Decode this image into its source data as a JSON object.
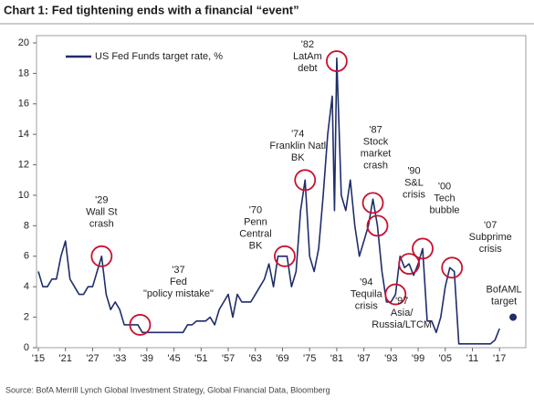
{
  "chart_data": {
    "type": "line",
    "title": "Chart 1: Fed tightening ends with a financial “event”",
    "source": "Source: BofA Merrill Lynch Global Investment Strategy, Global Financial Data, Bloomberg",
    "xlim": [
      1915,
      2022
    ],
    "ylim": [
      0,
      20
    ],
    "yticks": [
      0,
      2,
      4,
      6,
      8,
      10,
      12,
      14,
      16,
      18,
      20
    ],
    "xticks": [
      {
        "value": 1915,
        "label": "'15"
      },
      {
        "value": 1921,
        "label": "'21"
      },
      {
        "value": 1927,
        "label": "'27"
      },
      {
        "value": 1933,
        "label": "'33"
      },
      {
        "value": 1939,
        "label": "'39"
      },
      {
        "value": 1945,
        "label": "'45"
      },
      {
        "value": 1951,
        "label": "'51"
      },
      {
        "value": 1957,
        "label": "'57"
      },
      {
        "value": 1963,
        "label": "'63"
      },
      {
        "value": 1969,
        "label": "'69"
      },
      {
        "value": 1975,
        "label": "'75"
      },
      {
        "value": 1981,
        "label": "'81"
      },
      {
        "value": 1987,
        "label": "'87"
      },
      {
        "value": 1993,
        "label": "'93"
      },
      {
        "value": 1999,
        "label": "'99"
      },
      {
        "value": 2005,
        "label": "'05"
      },
      {
        "value": 2011,
        "label": "'11"
      },
      {
        "value": 2017,
        "label": "'17"
      }
    ],
    "legend": "upper left",
    "x": [
      1915,
      1916,
      1917,
      1918,
      1919,
      1920,
      1921,
      1922,
      1923,
      1924,
      1925,
      1926,
      1927,
      1928,
      1929,
      1930,
      1931,
      1932,
      1933,
      1934,
      1935,
      1936,
      1937,
      1938,
      1939,
      1940,
      1941,
      1942,
      1943,
      1944,
      1945,
      1946,
      1947,
      1948,
      1949,
      1950,
      1951,
      1952,
      1953,
      1954,
      1955,
      1956,
      1957,
      1958,
      1959,
      1960,
      1961,
      1962,
      1963,
      1964,
      1965,
      1966,
      1967,
      1968,
      1969,
      1970,
      1971,
      1972,
      1973,
      1974,
      1975,
      1976,
      1977,
      1978,
      1979,
      1980,
      1980.5,
      1981,
      1982,
      1983,
      1984,
      1985,
      1986,
      1987,
      1988,
      1989,
      1990,
      1991,
      1992,
      1993,
      1994,
      1995,
      1996,
      1997,
      1998,
      1999,
      2000,
      2001,
      2002,
      2003,
      2004,
      2005,
      2006,
      2007,
      2008,
      2009,
      2010,
      2011,
      2012,
      2013,
      2014,
      2015,
      2016,
      2017
    ],
    "series": [
      {
        "name": "US Fed Funds target rate, %",
        "color": "#1f2d6b",
        "values": [
          5,
          4,
          4,
          4.5,
          4.5,
          6,
          7,
          4.5,
          4,
          3.5,
          3.5,
          4,
          4,
          5,
          6,
          3.5,
          2.5,
          3,
          2.5,
          1.5,
          1.5,
          1.5,
          1.5,
          1,
          1,
          1,
          1,
          1,
          1,
          1,
          1,
          1,
          1,
          1.5,
          1.5,
          1.75,
          1.75,
          1.75,
          2,
          1.5,
          2.5,
          3,
          3.5,
          2,
          3.5,
          3,
          3,
          3,
          3.5,
          4,
          4.5,
          5.5,
          4,
          6,
          6,
          6,
          4,
          5,
          9,
          11,
          6,
          5,
          6.5,
          10,
          14,
          16.5,
          9,
          19,
          10,
          9,
          11,
          8,
          6,
          7,
          8,
          9.75,
          8,
          5,
          3,
          3,
          3.5,
          6,
          5.25,
          5.5,
          4.75,
          5.5,
          6.5,
          1.75,
          1.75,
          1,
          2,
          4,
          5.25,
          5,
          0.25,
          0.25,
          0.25,
          0.25,
          0.25,
          0.25,
          0.25,
          0.25,
          0.5,
          1.25
        ]
      }
    ],
    "event_color": "#c8102e",
    "annotations": [
      {
        "text": [
          "'29",
          "Wall St",
          "crash"
        ],
        "x": 1929,
        "y": 6
      },
      {
        "text": [
          "'37",
          "Fed",
          "\"policy mistake\""
        ],
        "x": 1937.5,
        "y": 1.5
      },
      {
        "text": [
          "'70",
          "Penn",
          "Central",
          "BK"
        ],
        "x": 1969.5,
        "y": 6
      },
      {
        "text": [
          "'74",
          "Franklin Natl",
          "BK"
        ],
        "x": 1974,
        "y": 11
      },
      {
        "text": [
          "'82",
          "LatAm",
          "debt"
        ],
        "x": 1981,
        "y": 18.8
      },
      {
        "text": [
          "'87",
          "Stock",
          "market",
          "crash"
        ],
        "x": 1989,
        "y": 9.5
      },
      {
        "text": [
          "'90",
          "S&L",
          "crisis"
        ],
        "x": 1990,
        "y": 8
      },
      {
        "text": [
          "'94",
          "Tequila",
          "crisis"
        ],
        "x": 1994,
        "y": 3.5
      },
      {
        "text": [
          "'97",
          "Asia/",
          "Russia/LTCM"
        ],
        "x": 1997,
        "y": 5.5
      },
      {
        "text": [
          "'00",
          "Tech",
          "bubble"
        ],
        "x": 2000,
        "y": 6.5
      },
      {
        "text": [
          "'07",
          "Subprime",
          "crisis"
        ],
        "x": 2006.5,
        "y": 5.25
      }
    ],
    "target": {
      "text": [
        "BofAML",
        "target"
      ],
      "x": 2020,
      "y": 2,
      "color": "#1f2d6b"
    }
  }
}
